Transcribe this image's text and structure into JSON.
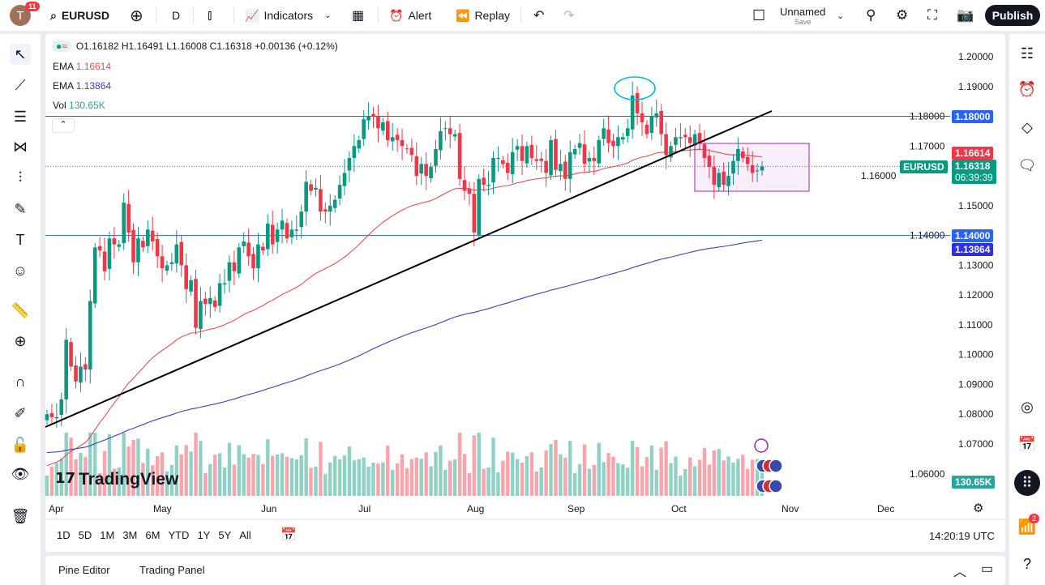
{
  "topbar": {
    "avatar_letter": "T",
    "notifications": "11",
    "symbol": "EURUSD",
    "interval": "D",
    "indicators": "Indicators",
    "alert": "Alert",
    "replay": "Replay",
    "layout_name": "Unnamed",
    "save": "Save",
    "publish": "Publish"
  },
  "legend": {
    "ohlc": "O1.16182 H1.16491 L1.16008 C1.16318 +0.00136 (+0.12%)",
    "ema1_label": "EMA",
    "ema1_value": "1.16614",
    "ema2_label": "EMA",
    "ema2_value": "1.13864",
    "vol_label": "Vol",
    "vol_value": "130.65K"
  },
  "colors": {
    "up": "#089981",
    "down": "#f23645",
    "ema_fast": "#e05252",
    "ema_slow": "#3f3fb0",
    "hline": "#2962ff",
    "accent": "#2962ff"
  },
  "price_labels": {
    "hline_top": "1.18000",
    "ema_fast": "1.16614",
    "symbol": "EURUSD",
    "last": "1.16318",
    "countdown": "06:39:39",
    "hline_bottom": "1.14000",
    "ema_slow": "1.13864",
    "volume": "130.65K"
  },
  "chart_data": {
    "type": "candlestick",
    "symbol": "EURUSD",
    "interval": "D",
    "ylim": [
      1.06,
      1.2
    ],
    "y_ticks": [
      "1.20000",
      "1.19000",
      "1.18000",
      "1.17000",
      "1.16000",
      "1.15000",
      "1.14000",
      "1.13000",
      "1.12000",
      "1.11000",
      "1.10000",
      "1.09000",
      "1.08000",
      "1.07000",
      "1.06000"
    ],
    "x_ticks": [
      "Apr",
      "May",
      "Jun",
      "Jul",
      "Aug",
      "Sep",
      "Oct",
      "Nov",
      "Dec"
    ],
    "last_candle": {
      "open": 1.16182,
      "high": 1.16491,
      "low": 1.16008,
      "close": 1.16318
    },
    "closes": [
      1.08,
      1.079,
      1.079,
      1.085,
      1.105,
      1.096,
      1.091,
      1.096,
      1.095,
      1.118,
      1.136,
      1.135,
      1.128,
      1.139,
      1.137,
      1.137,
      1.151,
      1.141,
      1.131,
      1.139,
      1.136,
      1.142,
      1.138,
      1.133,
      1.129,
      1.13,
      1.131,
      1.137,
      1.13,
      1.122,
      1.125,
      1.109,
      1.118,
      1.117,
      1.119,
      1.116,
      1.124,
      1.124,
      1.131,
      1.128,
      1.136,
      1.138,
      1.133,
      1.129,
      1.137,
      1.135,
      1.144,
      1.137,
      1.142,
      1.145,
      1.139,
      1.142,
      1.142,
      1.148,
      1.158,
      1.155,
      1.156,
      1.148,
      1.148,
      1.15,
      1.152,
      1.157,
      1.161,
      1.166,
      1.17,
      1.172,
      1.179,
      1.18,
      1.18,
      1.176,
      1.178,
      1.172,
      1.173,
      1.172,
      1.17,
      1.169,
      1.167,
      1.16,
      1.164,
      1.16,
      1.163,
      1.169,
      1.175,
      1.176,
      1.174,
      1.174,
      1.159,
      1.155,
      1.154,
      1.141,
      1.159,
      1.157,
      1.157,
      1.166,
      1.166,
      1.164,
      1.161,
      1.168,
      1.17,
      1.165,
      1.17,
      1.166,
      1.165,
      1.165,
      1.161,
      1.172,
      1.162,
      1.164,
      1.159,
      1.168,
      1.169,
      1.171,
      1.164,
      1.166,
      1.165,
      1.172,
      1.176,
      1.171,
      1.17,
      1.173,
      1.173,
      1.176,
      1.187,
      1.181,
      1.178,
      1.174,
      1.18,
      1.181,
      1.174,
      1.167,
      1.17,
      1.173,
      1.173,
      1.173,
      1.171,
      1.174,
      1.171,
      1.166,
      1.163,
      1.157,
      1.161,
      1.157,
      1.16,
      1.165,
      1.169,
      1.166,
      1.164,
      1.161,
      1.1618,
      1.16318
    ],
    "horizontal_lines": [
      1.18,
      1.14
    ],
    "ema_fast_last": 1.16614,
    "ema_slow_last": 1.13864,
    "grid": false
  },
  "timeframes": [
    "1D",
    "5D",
    "1M",
    "3M",
    "6M",
    "YTD",
    "1Y",
    "5Y",
    "All"
  ],
  "clock": "14:20:19 UTC",
  "bottom_tabs": [
    "Pine Editor",
    "Trading Panel"
  ],
  "right_badge": "2",
  "logo": "TradingView"
}
